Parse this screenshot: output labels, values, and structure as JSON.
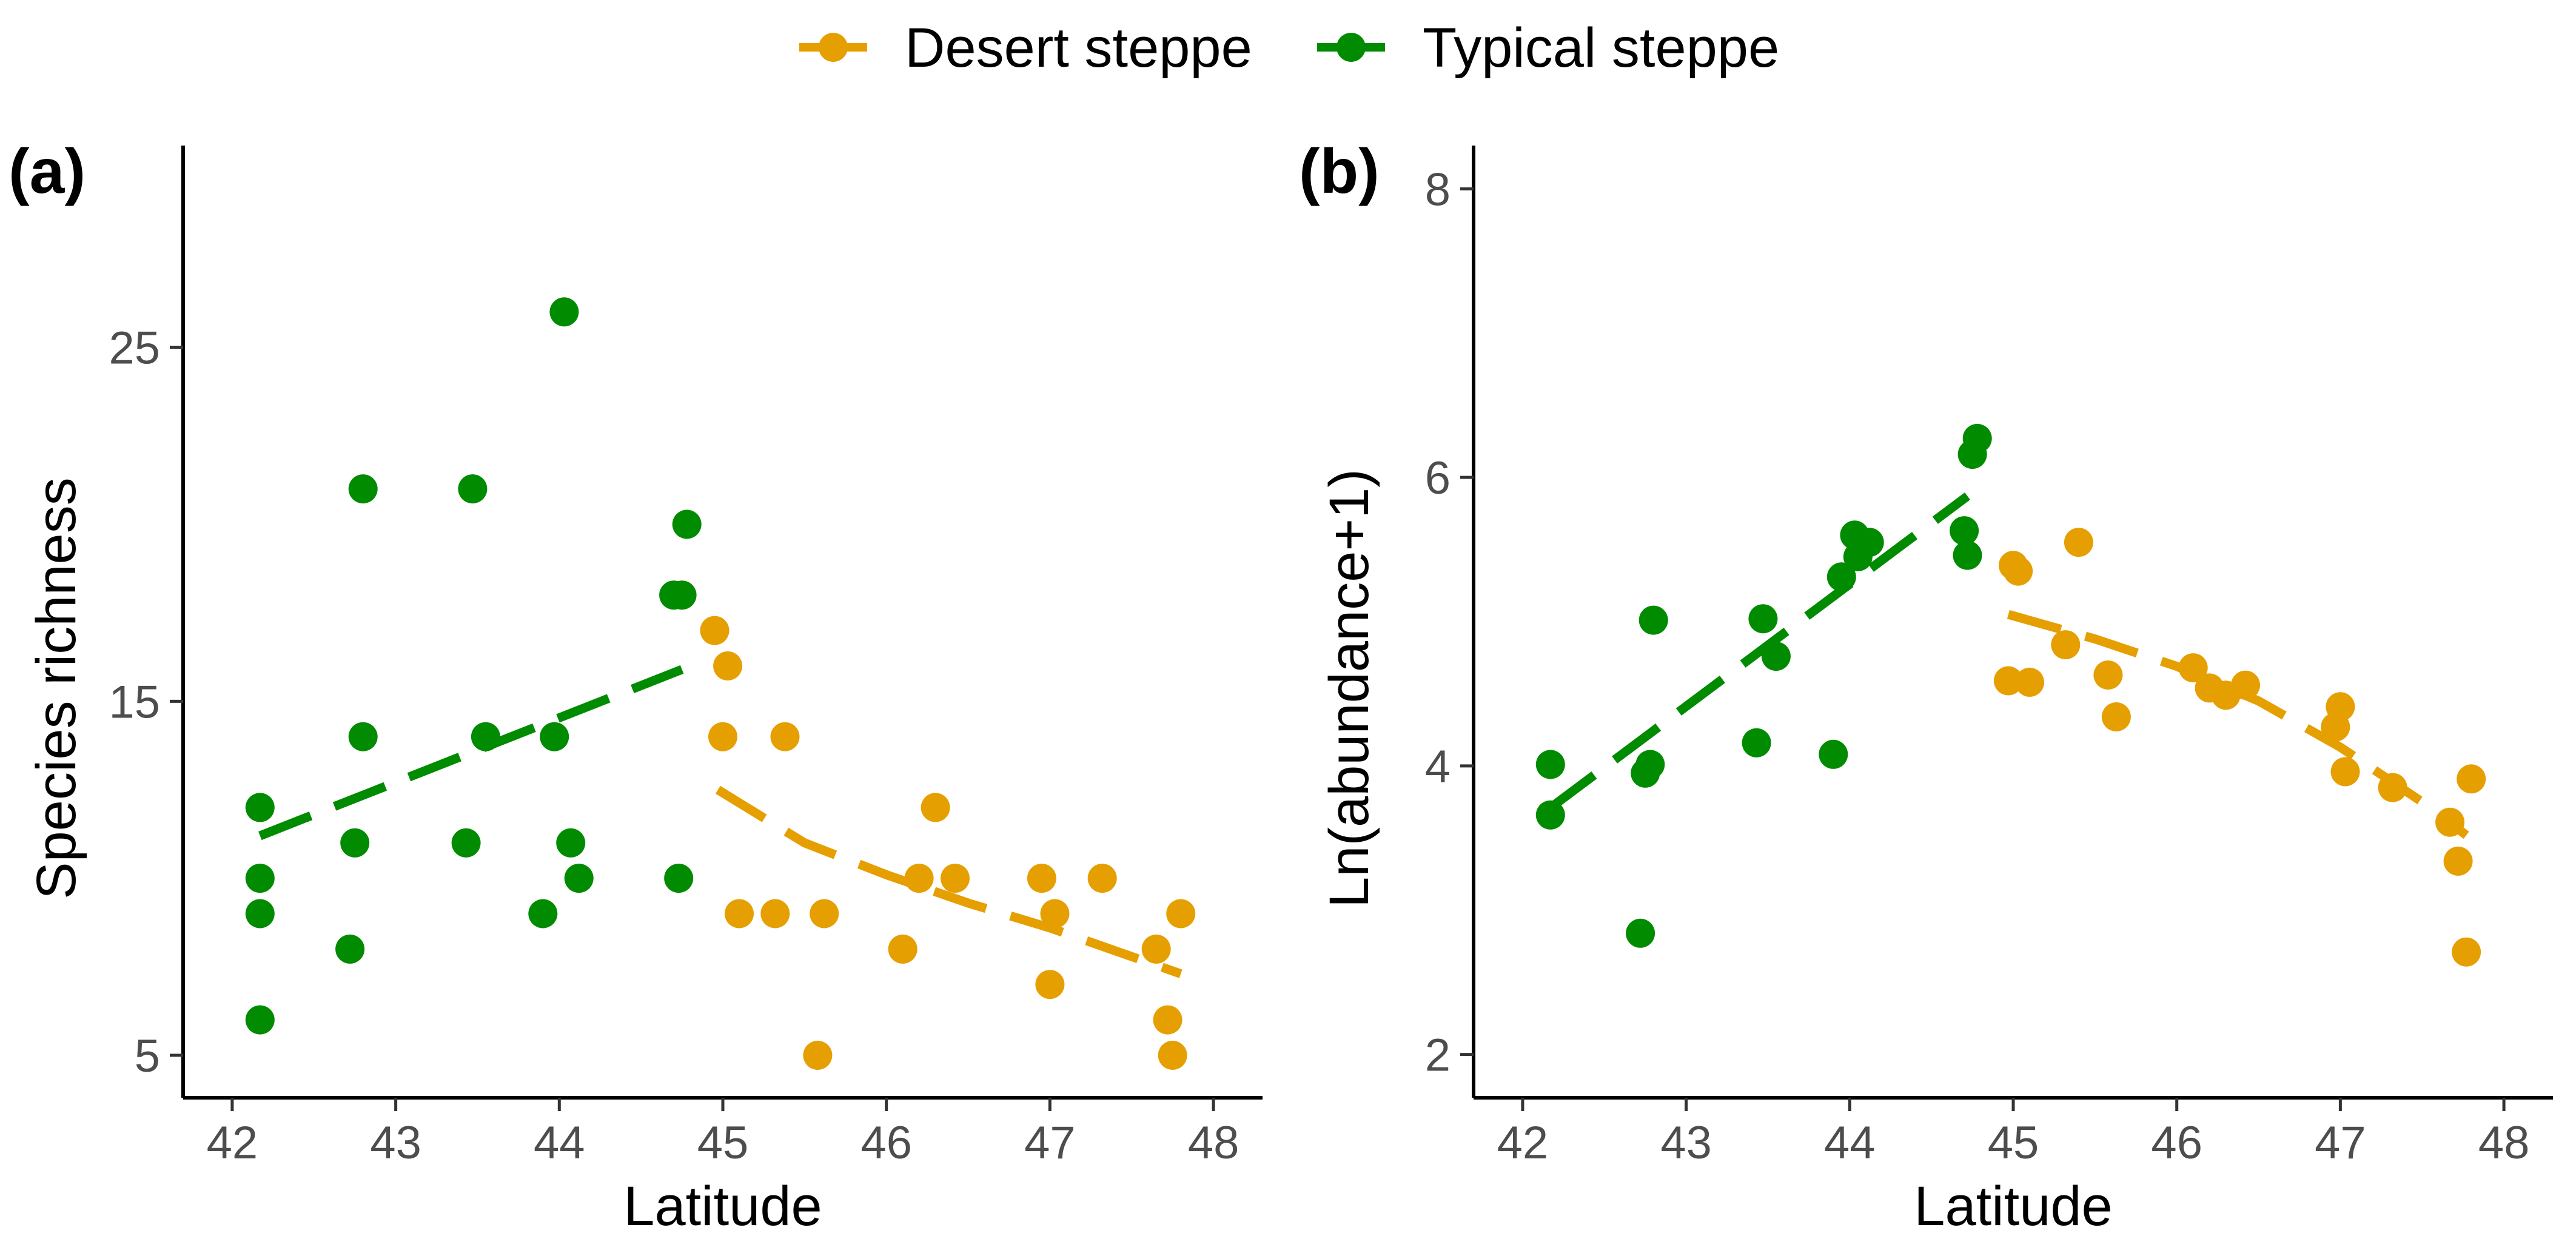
{
  "legend": {
    "entries": [
      {
        "label": "Desert steppe",
        "color": "#E69F00"
      },
      {
        "label": "Typical steppe",
        "color": "#008B00"
      }
    ]
  },
  "chart_data": [
    {
      "type": "scatter",
      "panel_label": "(a)",
      "xlabel": "Latitude",
      "ylabel": "Species richness",
      "xlim": [
        41.7,
        48.3
      ],
      "ylim": [
        3.8,
        30.7
      ],
      "xticks": [
        42,
        43,
        44,
        45,
        46,
        47,
        48
      ],
      "yticks": [
        5,
        15,
        25
      ],
      "series": [
        {
          "name": "Typical steppe",
          "color": "#008B00",
          "points": [
            [
              42.17,
              12
            ],
            [
              42.17,
              10
            ],
            [
              42.17,
              9
            ],
            [
              42.17,
              6
            ],
            [
              42.72,
              8
            ],
            [
              42.75,
              11
            ],
            [
              42.8,
              14
            ],
            [
              42.8,
              21
            ],
            [
              43.43,
              11
            ],
            [
              43.47,
              21
            ],
            [
              43.55,
              14
            ],
            [
              43.9,
              9
            ],
            [
              43.97,
              14
            ],
            [
              44.03,
              26
            ],
            [
              44.07,
              11
            ],
            [
              44.12,
              10
            ],
            [
              44.7,
              18
            ],
            [
              44.75,
              18
            ],
            [
              44.73,
              10
            ],
            [
              44.78,
              20
            ]
          ],
          "trend": [
            [
              42.17,
              11.2
            ],
            [
              44.75,
              15.9
            ]
          ]
        },
        {
          "name": "Desert steppe",
          "color": "#E69F00",
          "points": [
            [
              44.95,
              17
            ],
            [
              45.0,
              14
            ],
            [
              45.03,
              16
            ],
            [
              45.1,
              9
            ],
            [
              45.32,
              9
            ],
            [
              45.38,
              14
            ],
            [
              45.62,
              9
            ],
            [
              45.58,
              5
            ],
            [
              46.1,
              8
            ],
            [
              46.2,
              10
            ],
            [
              46.3,
              12
            ],
            [
              46.42,
              10
            ],
            [
              46.95,
              10
            ],
            [
              47.0,
              7
            ],
            [
              47.03,
              9
            ],
            [
              47.32,
              10
            ],
            [
              47.65,
              8
            ],
            [
              47.72,
              6
            ],
            [
              47.75,
              5
            ],
            [
              47.8,
              9
            ]
          ],
          "trend": [
            [
              44.97,
              12.5
            ],
            [
              45.5,
              11.0
            ],
            [
              46.0,
              10.1
            ],
            [
              46.5,
              9.3
            ],
            [
              47.0,
              8.6
            ],
            [
              47.8,
              7.3
            ]
          ]
        }
      ]
    },
    {
      "type": "scatter",
      "panel_label": "(b)",
      "xlabel": "Latitude",
      "ylabel": "Ln(abundance+1)",
      "xlim": [
        41.7,
        48.3
      ],
      "ylim": [
        1.7,
        8.3
      ],
      "xticks": [
        42,
        43,
        44,
        45,
        46,
        47,
        48
      ],
      "yticks": [
        2,
        4,
        6,
        8
      ],
      "series": [
        {
          "name": "Typical steppe",
          "color": "#008B00",
          "points": [
            [
              42.17,
              4.01
            ],
            [
              42.17,
              3.66
            ],
            [
              42.72,
              2.84
            ],
            [
              42.75,
              3.95
            ],
            [
              42.78,
              4.01
            ],
            [
              42.8,
              5.01
            ],
            [
              43.43,
              4.16
            ],
            [
              43.47,
              5.02
            ],
            [
              43.55,
              4.76
            ],
            [
              43.9,
              4.08
            ],
            [
              43.95,
              5.31
            ],
            [
              44.03,
              5.6
            ],
            [
              44.05,
              5.45
            ],
            [
              44.12,
              5.55
            ],
            [
              44.7,
              5.63
            ],
            [
              44.72,
              5.46
            ],
            [
              44.75,
              6.16
            ],
            [
              44.78,
              6.27
            ]
          ],
          "trend": [
            [
              42.17,
              3.71
            ],
            [
              44.72,
              5.87
            ]
          ]
        },
        {
          "name": "Desert steppe",
          "color": "#E69F00",
          "points": [
            [
              44.97,
              4.59
            ],
            [
              45.0,
              5.39
            ],
            [
              45.03,
              5.35
            ],
            [
              45.1,
              4.58
            ],
            [
              45.32,
              4.84
            ],
            [
              45.4,
              5.55
            ],
            [
              45.58,
              4.63
            ],
            [
              45.63,
              4.34
            ],
            [
              46.1,
              4.68
            ],
            [
              46.2,
              4.54
            ],
            [
              46.3,
              4.49
            ],
            [
              46.42,
              4.56
            ],
            [
              46.97,
              4.27
            ],
            [
              47.0,
              4.41
            ],
            [
              47.03,
              3.96
            ],
            [
              47.32,
              3.85
            ],
            [
              47.67,
              3.61
            ],
            [
              47.72,
              3.34
            ],
            [
              47.77,
              2.71
            ],
            [
              47.8,
              3.91
            ]
          ],
          "trend": [
            [
              44.97,
              5.05
            ],
            [
              45.5,
              4.88
            ],
            [
              46.0,
              4.69
            ],
            [
              46.5,
              4.45
            ],
            [
              47.0,
              4.13
            ],
            [
              47.5,
              3.75
            ],
            [
              47.77,
              3.52
            ]
          ]
        }
      ]
    }
  ]
}
